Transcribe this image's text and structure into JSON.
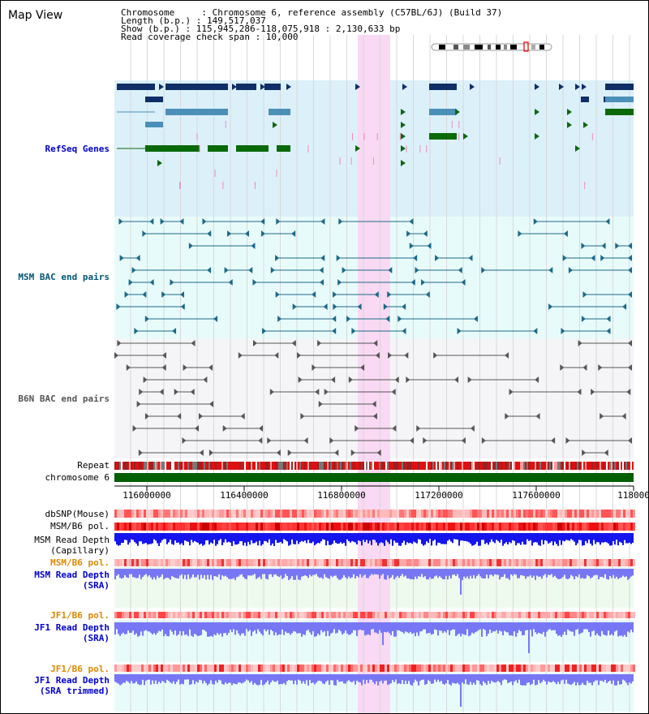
{
  "title": "Map View",
  "info": {
    "line1": "Chromosome     : Chromosome 6, reference assembly (C57BL/6J) (Build 37)",
    "line2": "Length (b.p.) : 149,517,037",
    "line3": "Show (b.p.) : 115,945,286-118,075,918 : 2,130,633 bp",
    "line4": "Read coverage check span : 10,000"
  },
  "tracks": {
    "refseq": "RefSeq Genes",
    "msm_bac": "MSM BAC end pairs",
    "b6n_bac": "B6N BAC end pairs",
    "repeat": "Repeat",
    "chromosome": "chromosome 6",
    "dbsnp": "dbSNP(Mouse)",
    "msm_b6_pol_1": "MSM/B6 pol.",
    "msm_depth_cap": "MSM Read Depth\n(Capillary)",
    "msm_b6_pol_2": "MSM/B6 pol.",
    "msm_depth_sra": "MSM Read Depth\n(SRA)",
    "jf1_b6_pol_1": "JF1/B6 pol.",
    "jf1_depth_sra": "JF1 Read Depth\n(SRA)",
    "jf1_b6_pol_2": "JF1/B6 pol.",
    "jf1_depth_trim": "JF1 Read Depth\n(SRA trimmed)"
  },
  "axis": {
    "ticks": [
      "116000000",
      "116400000",
      "116800000",
      "117200000",
      "117600000",
      "118000"
    ]
  },
  "colors": {
    "refseq_bg": "#dcf0fa",
    "msm_bg": "#e8fbfb",
    "b6n_bg": "#f5f5f8",
    "highlight": "#f9d9f3",
    "gene_navy": "#0f2f66",
    "gene_steel": "#4a90b8",
    "gene_green": "#0a6a0a",
    "msm_line": "#1a6a8a",
    "b6n_line": "#555555",
    "label_blue": "#0000cc",
    "label_orange": "#dd8800",
    "label_msm": "#005577",
    "depth_blue": "#1515ee",
    "depth_light": "#7777f5"
  }
}
